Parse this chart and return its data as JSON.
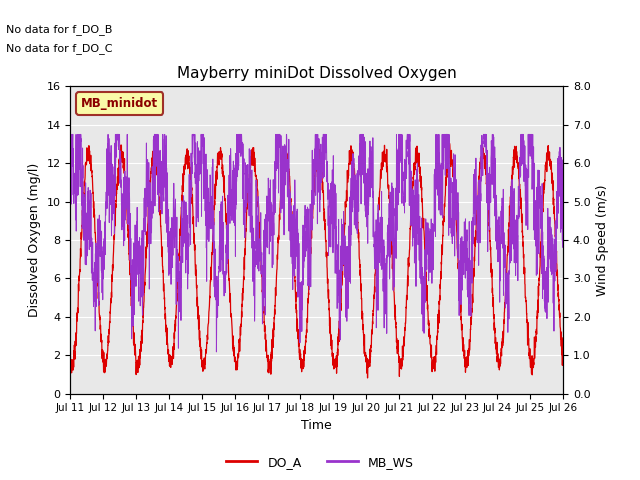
{
  "title": "Mayberry miniDot Dissolved Oxygen",
  "xlabel": "Time",
  "ylabel_left": "Dissolved Oxygen (mg/l)",
  "ylabel_right": "Wind Speed (m/s)",
  "ylim_left": [
    0,
    16
  ],
  "ylim_right": [
    0.0,
    8.0
  ],
  "yticks_left": [
    0,
    2,
    4,
    6,
    8,
    10,
    12,
    14,
    16
  ],
  "yticks_right": [
    0.0,
    1.0,
    2.0,
    3.0,
    4.0,
    5.0,
    6.0,
    7.0,
    8.0
  ],
  "xtick_labels": [
    "Jul 11",
    "Jul 12",
    "Jul 13",
    "Jul 14",
    "Jul 15",
    "Jul 16",
    "Jul 17",
    "Jul 18",
    "Jul 19",
    "Jul 20",
    "Jul 21",
    "Jul 22",
    "Jul 23",
    "Jul 24",
    "Jul 25",
    "Jul 26"
  ],
  "no_data_texts": [
    "No data for f_DO_B",
    "No data for f_DO_C"
  ],
  "legend_box_label": "MB_minidot",
  "legend_box_facecolor": "#ffff99",
  "legend_box_edgecolor": "#8b0000",
  "legend_box_textcolor": "#8b0000",
  "line_do_color": "#dd0000",
  "line_ws_color": "#9933cc",
  "line_do_label": "DO_A",
  "line_ws_label": "MB_WS",
  "plot_bg_color": "#e8e8e8",
  "fig_bg_color": "#ffffff",
  "grid_color": "#ffffff",
  "n_points": 2880,
  "days": 15
}
